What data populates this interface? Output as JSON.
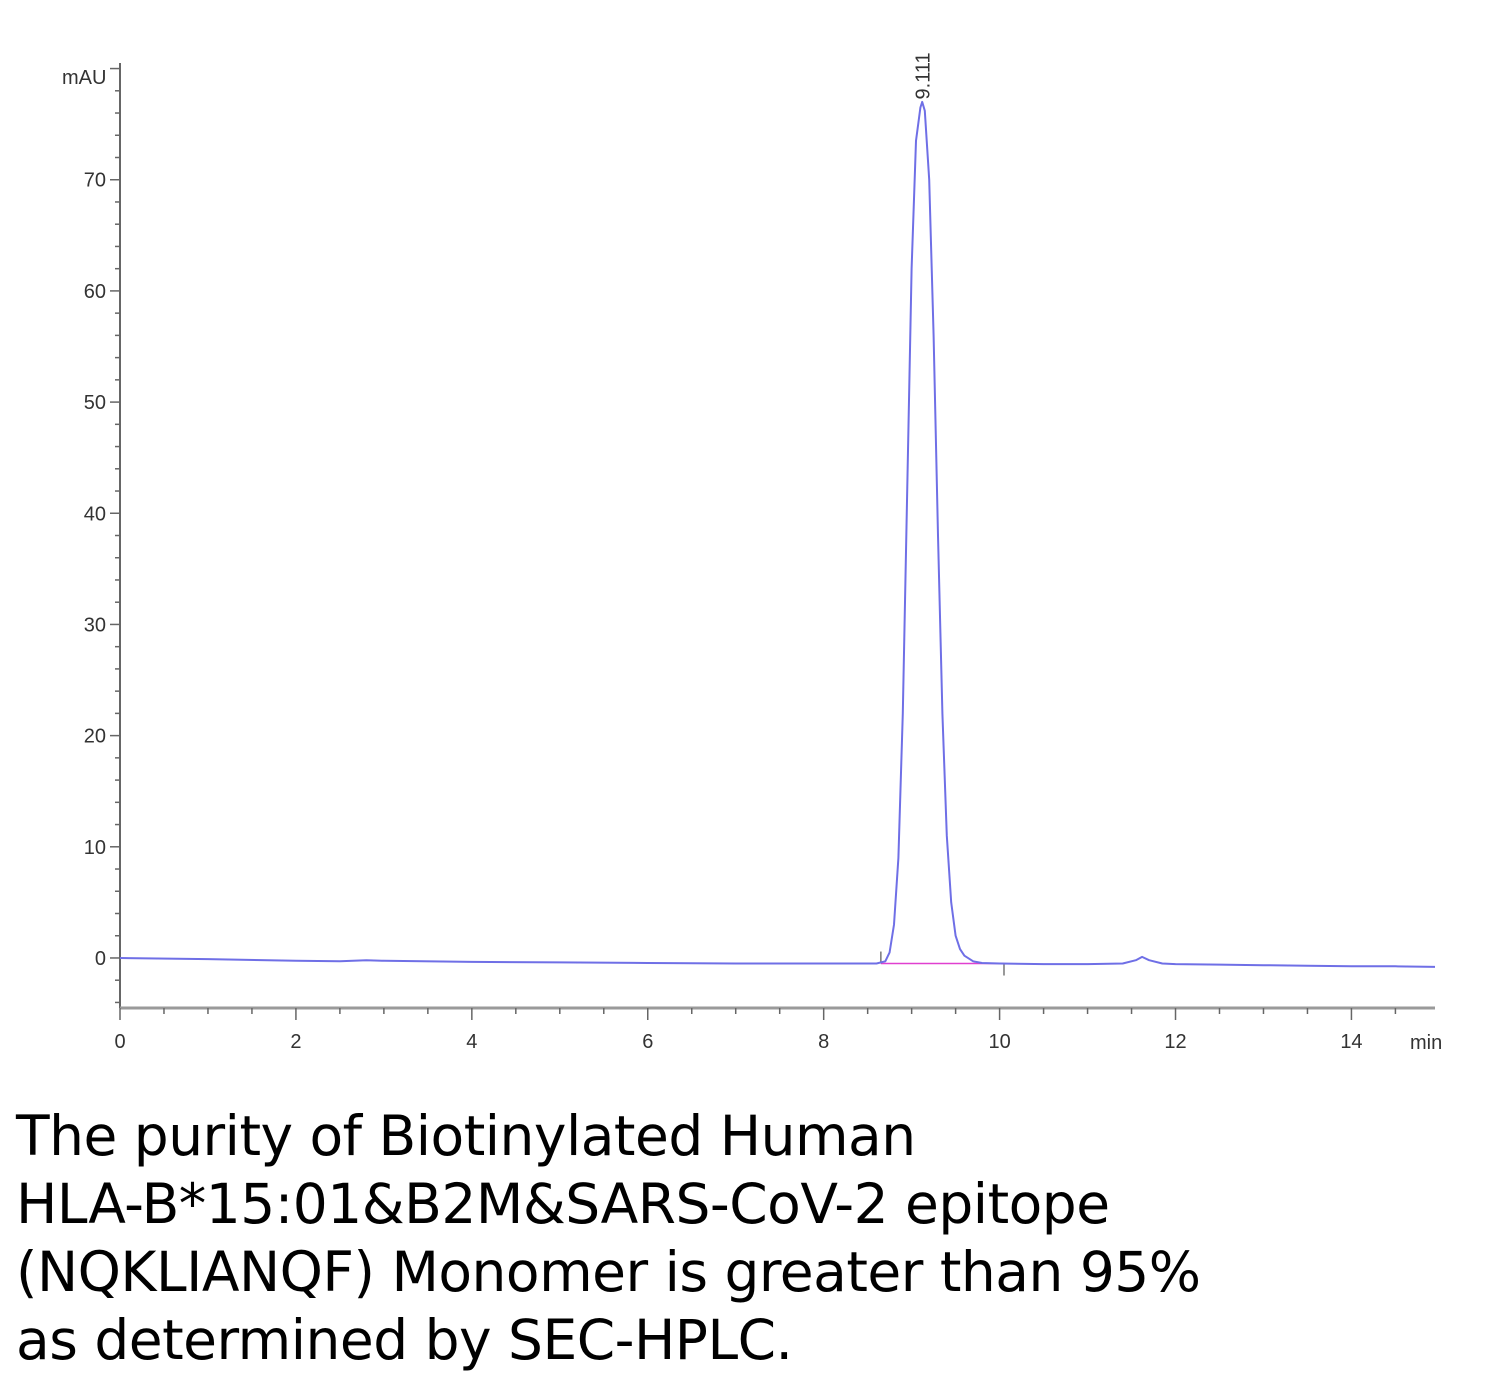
{
  "caption_lines": [
    "The purity of Biotinylated Human",
    "HLA-B*15:01&B2M&SARS-CoV-2 epitope",
    "(NQKLIANQF) Monomer is greater than 95%",
    "as determined by SEC-HPLC."
  ],
  "chart_data": {
    "type": "line",
    "title": "",
    "xlabel": "min",
    "ylabel": "mAU",
    "xlim": [
      0,
      14.95
    ],
    "ylim": [
      -4.5,
      80.5
    ],
    "x_ticks": [
      0,
      2,
      4,
      6,
      8,
      10,
      12,
      14
    ],
    "y_ticks": [
      0,
      10,
      20,
      30,
      40,
      50,
      60,
      70
    ],
    "grid": false,
    "colors": {
      "trace": "#6f6fe6",
      "baseline": "#e040d0",
      "axis": "#666666"
    },
    "series": [
      {
        "x": [
          0,
          1,
          2,
          2.5,
          2.8,
          3,
          4,
          5,
          6,
          7,
          8,
          8.6,
          8.7,
          8.75,
          8.8,
          8.85,
          8.9,
          8.95,
          9.0,
          9.05,
          9.1,
          9.12,
          9.15,
          9.2,
          9.25,
          9.3,
          9.35,
          9.4,
          9.45,
          9.5,
          9.55,
          9.6,
          9.7,
          9.8,
          10,
          10.5,
          11,
          11.4,
          11.55,
          11.62,
          11.7,
          11.85,
          12,
          12.5,
          13,
          13.5,
          14,
          14.5,
          14.95
        ],
        "y": [
          0,
          -0.1,
          -0.25,
          -0.3,
          -0.2,
          -0.25,
          -0.35,
          -0.4,
          -0.45,
          -0.5,
          -0.5,
          -0.5,
          -0.3,
          0.5,
          3,
          9,
          22,
          42,
          62,
          73.5,
          76.5,
          77,
          76.2,
          70,
          56,
          38,
          22,
          11,
          5,
          2,
          0.8,
          0.2,
          -0.3,
          -0.45,
          -0.5,
          -0.55,
          -0.55,
          -0.5,
          -0.2,
          0.1,
          -0.2,
          -0.5,
          -0.55,
          -0.6,
          -0.65,
          -0.7,
          -0.75,
          -0.75,
          -0.8
        ]
      }
    ],
    "peak_annotation": {
      "x": 9.111,
      "label": "9.111"
    },
    "integration_baseline": {
      "x": [
        8.65,
        10.05
      ],
      "y": [
        -0.5,
        -0.5
      ]
    }
  }
}
